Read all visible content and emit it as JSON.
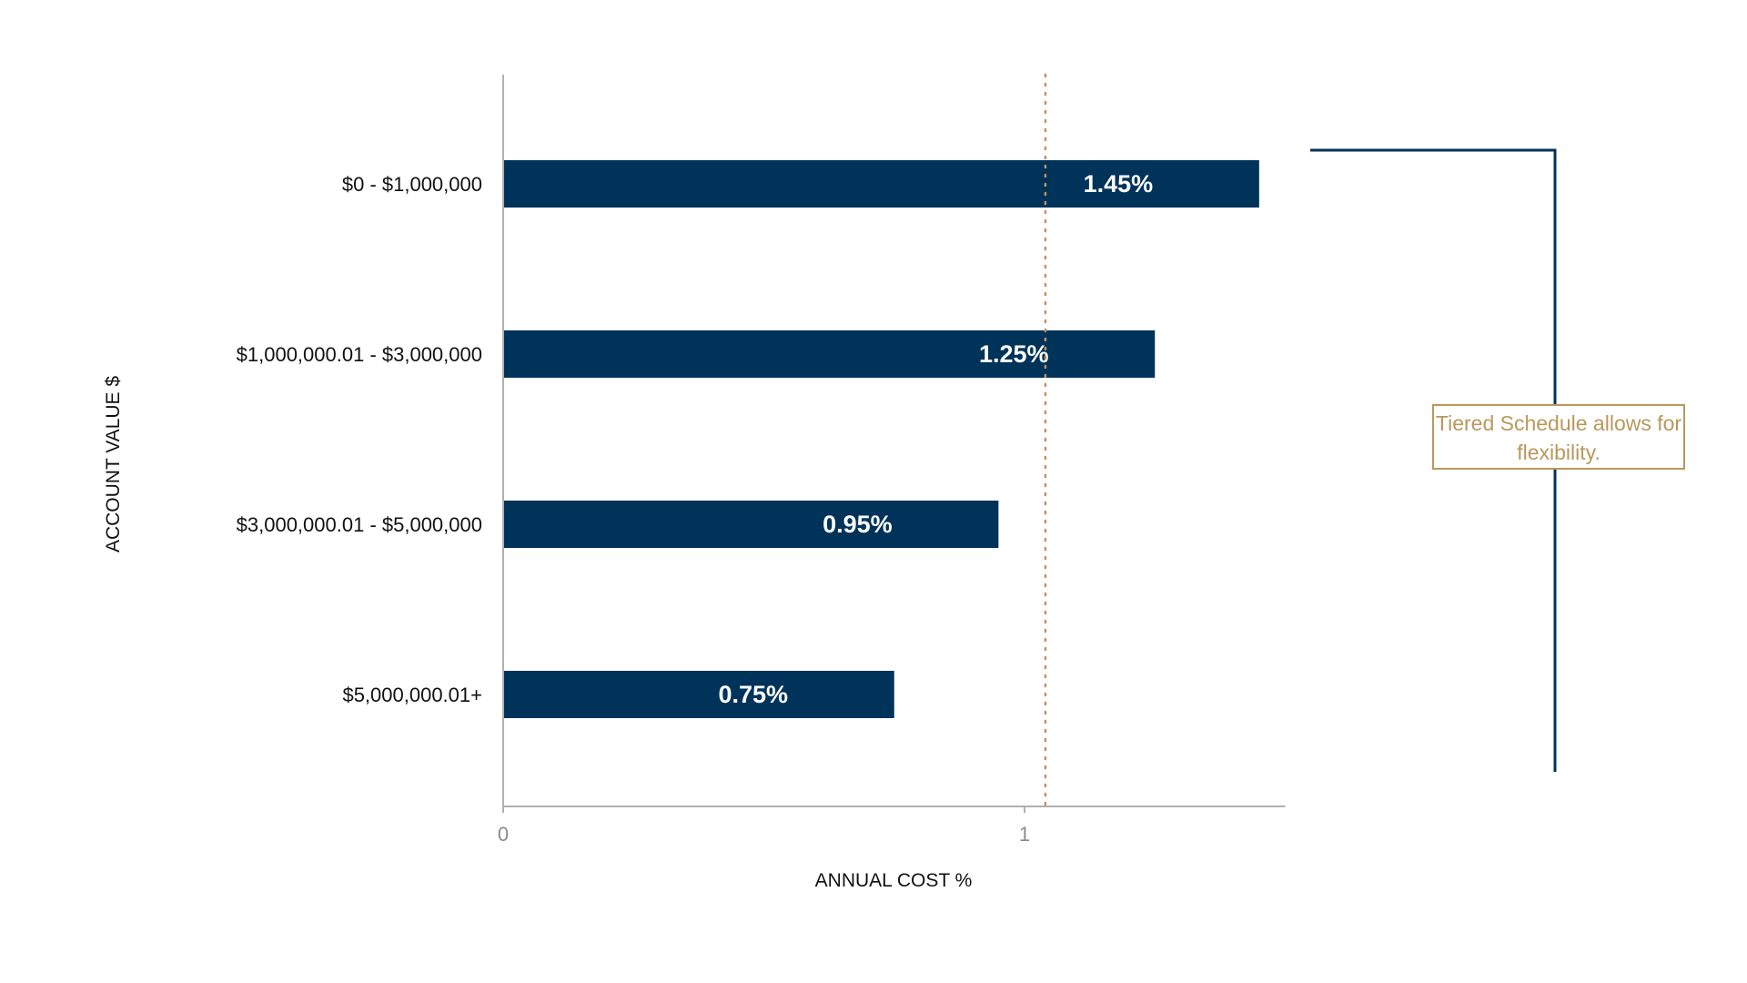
{
  "chart_data": {
    "type": "bar",
    "orientation": "horizontal",
    "categories": [
      "$0 - $1,000,000",
      "$1,000,000.01 - $3,000,000",
      "$3,000,000.01 - $5,000,000",
      "$5,000,000.01+"
    ],
    "values": [
      1.45,
      1.25,
      0.95,
      0.75
    ],
    "value_labels": [
      "1.45%",
      "1.25%",
      "0.95%",
      "0.75%"
    ],
    "x_ticks": [
      "0",
      "1"
    ],
    "xlabel": "ANNUAL COST %",
    "ylabel": "ACCOUNT VALUE $",
    "xlim": [
      0,
      1.5
    ],
    "reference_line": {
      "value": 1.04,
      "style": "dotted"
    },
    "annotation": "Tiered Schedule allows for flexibility.",
    "grid": false,
    "legend": "none"
  },
  "colors": {
    "bar": "#00335a",
    "bracket": "#00335a",
    "reference_line": "#c8905e",
    "annotation": "#b9985c",
    "axis": "#b0b0b0"
  }
}
